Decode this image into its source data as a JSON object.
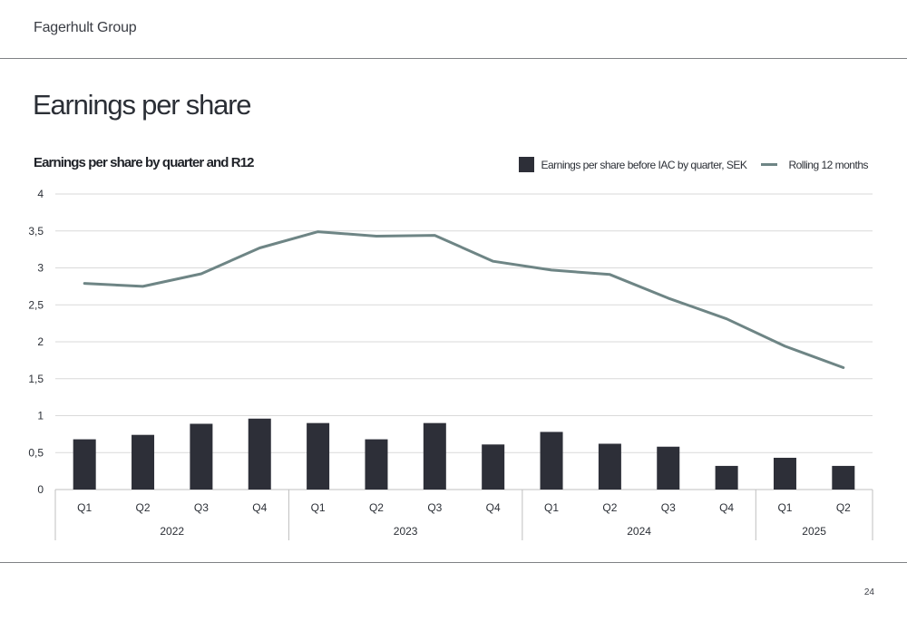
{
  "header": {
    "company": "Fagerhult Group",
    "page_title": "Earnings per share"
  },
  "footer": {
    "page_number": "24"
  },
  "colors": {
    "bar": "#2d2f38",
    "line": "#6e8585",
    "grid": "#d9d9d9",
    "axis": "#bfbfbf"
  },
  "chart_data": {
    "type": "bar",
    "title": "Earnings per share by quarter and R12",
    "categories": [
      "Q1",
      "Q2",
      "Q3",
      "Q4",
      "Q1",
      "Q2",
      "Q3",
      "Q4",
      "Q1",
      "Q2",
      "Q3",
      "Q4",
      "Q1",
      "Q2"
    ],
    "groups": [
      {
        "label": "2022",
        "count": 4
      },
      {
        "label": "2023",
        "count": 4
      },
      {
        "label": "2024",
        "count": 4
      },
      {
        "label": "2025",
        "count": 2
      }
    ],
    "series": [
      {
        "name": "Earnings per share before IAC by quarter, SEK",
        "type": "bar",
        "values": [
          0.68,
          0.74,
          0.89,
          0.96,
          0.9,
          0.68,
          0.9,
          0.61,
          0.78,
          0.62,
          0.58,
          0.32,
          0.43,
          0.32
        ]
      },
      {
        "name": "Rolling 12 months",
        "type": "line",
        "values": [
          2.79,
          2.75,
          2.92,
          3.27,
          3.49,
          3.43,
          3.44,
          3.09,
          2.97,
          2.91,
          2.59,
          2.31,
          1.94,
          1.65
        ]
      }
    ],
    "yticks": [
      "0",
      "0,5",
      "1",
      "1,5",
      "2",
      "2,5",
      "3",
      "3,5",
      "4"
    ],
    "ylim": [
      0,
      4
    ],
    "grid": true,
    "legend_position": "top-right"
  }
}
